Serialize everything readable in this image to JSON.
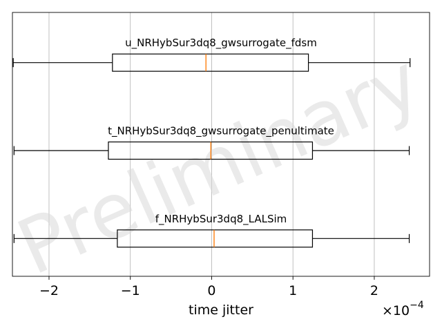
{
  "chart_data": {
    "type": "boxplot",
    "orientation": "horizontal",
    "xlabel": "time jitter",
    "x_multiplier_label": "×10",
    "x_multiplier_exp": "−4",
    "x_scale": 0.0001,
    "xlim": [
      -2.45,
      2.68
    ],
    "xticks": [
      {
        "value": -2,
        "label": "−2"
      },
      {
        "value": -1,
        "label": "−1"
      },
      {
        "value": 0,
        "label": "0"
      },
      {
        "value": 1,
        "label": "1"
      },
      {
        "value": 2,
        "label": "2"
      }
    ],
    "grid": "x",
    "watermark": "Preliminary",
    "series": [
      {
        "name": "u_NRHybSur3dq8_gwsurrogate_fdsm",
        "whisker_low": -2.44,
        "q1": -1.22,
        "median": -0.07,
        "q3": 1.19,
        "whisker_high": 2.44
      },
      {
        "name": "t_NRHybSur3dq8_gwsurrogate_penultimate",
        "whisker_low": -2.43,
        "q1": -1.27,
        "median": -0.01,
        "q3": 1.24,
        "whisker_high": 2.43
      },
      {
        "name": "f_NRHybSur3dq8_LALSim",
        "whisker_low": -2.43,
        "q1": -1.16,
        "median": 0.03,
        "q3": 1.24,
        "whisker_high": 2.43
      }
    ],
    "colors": {
      "box": "#000000",
      "median": "#ff7f0e",
      "grid": "#b0b0b0",
      "watermark": "#d9d9d9"
    }
  }
}
